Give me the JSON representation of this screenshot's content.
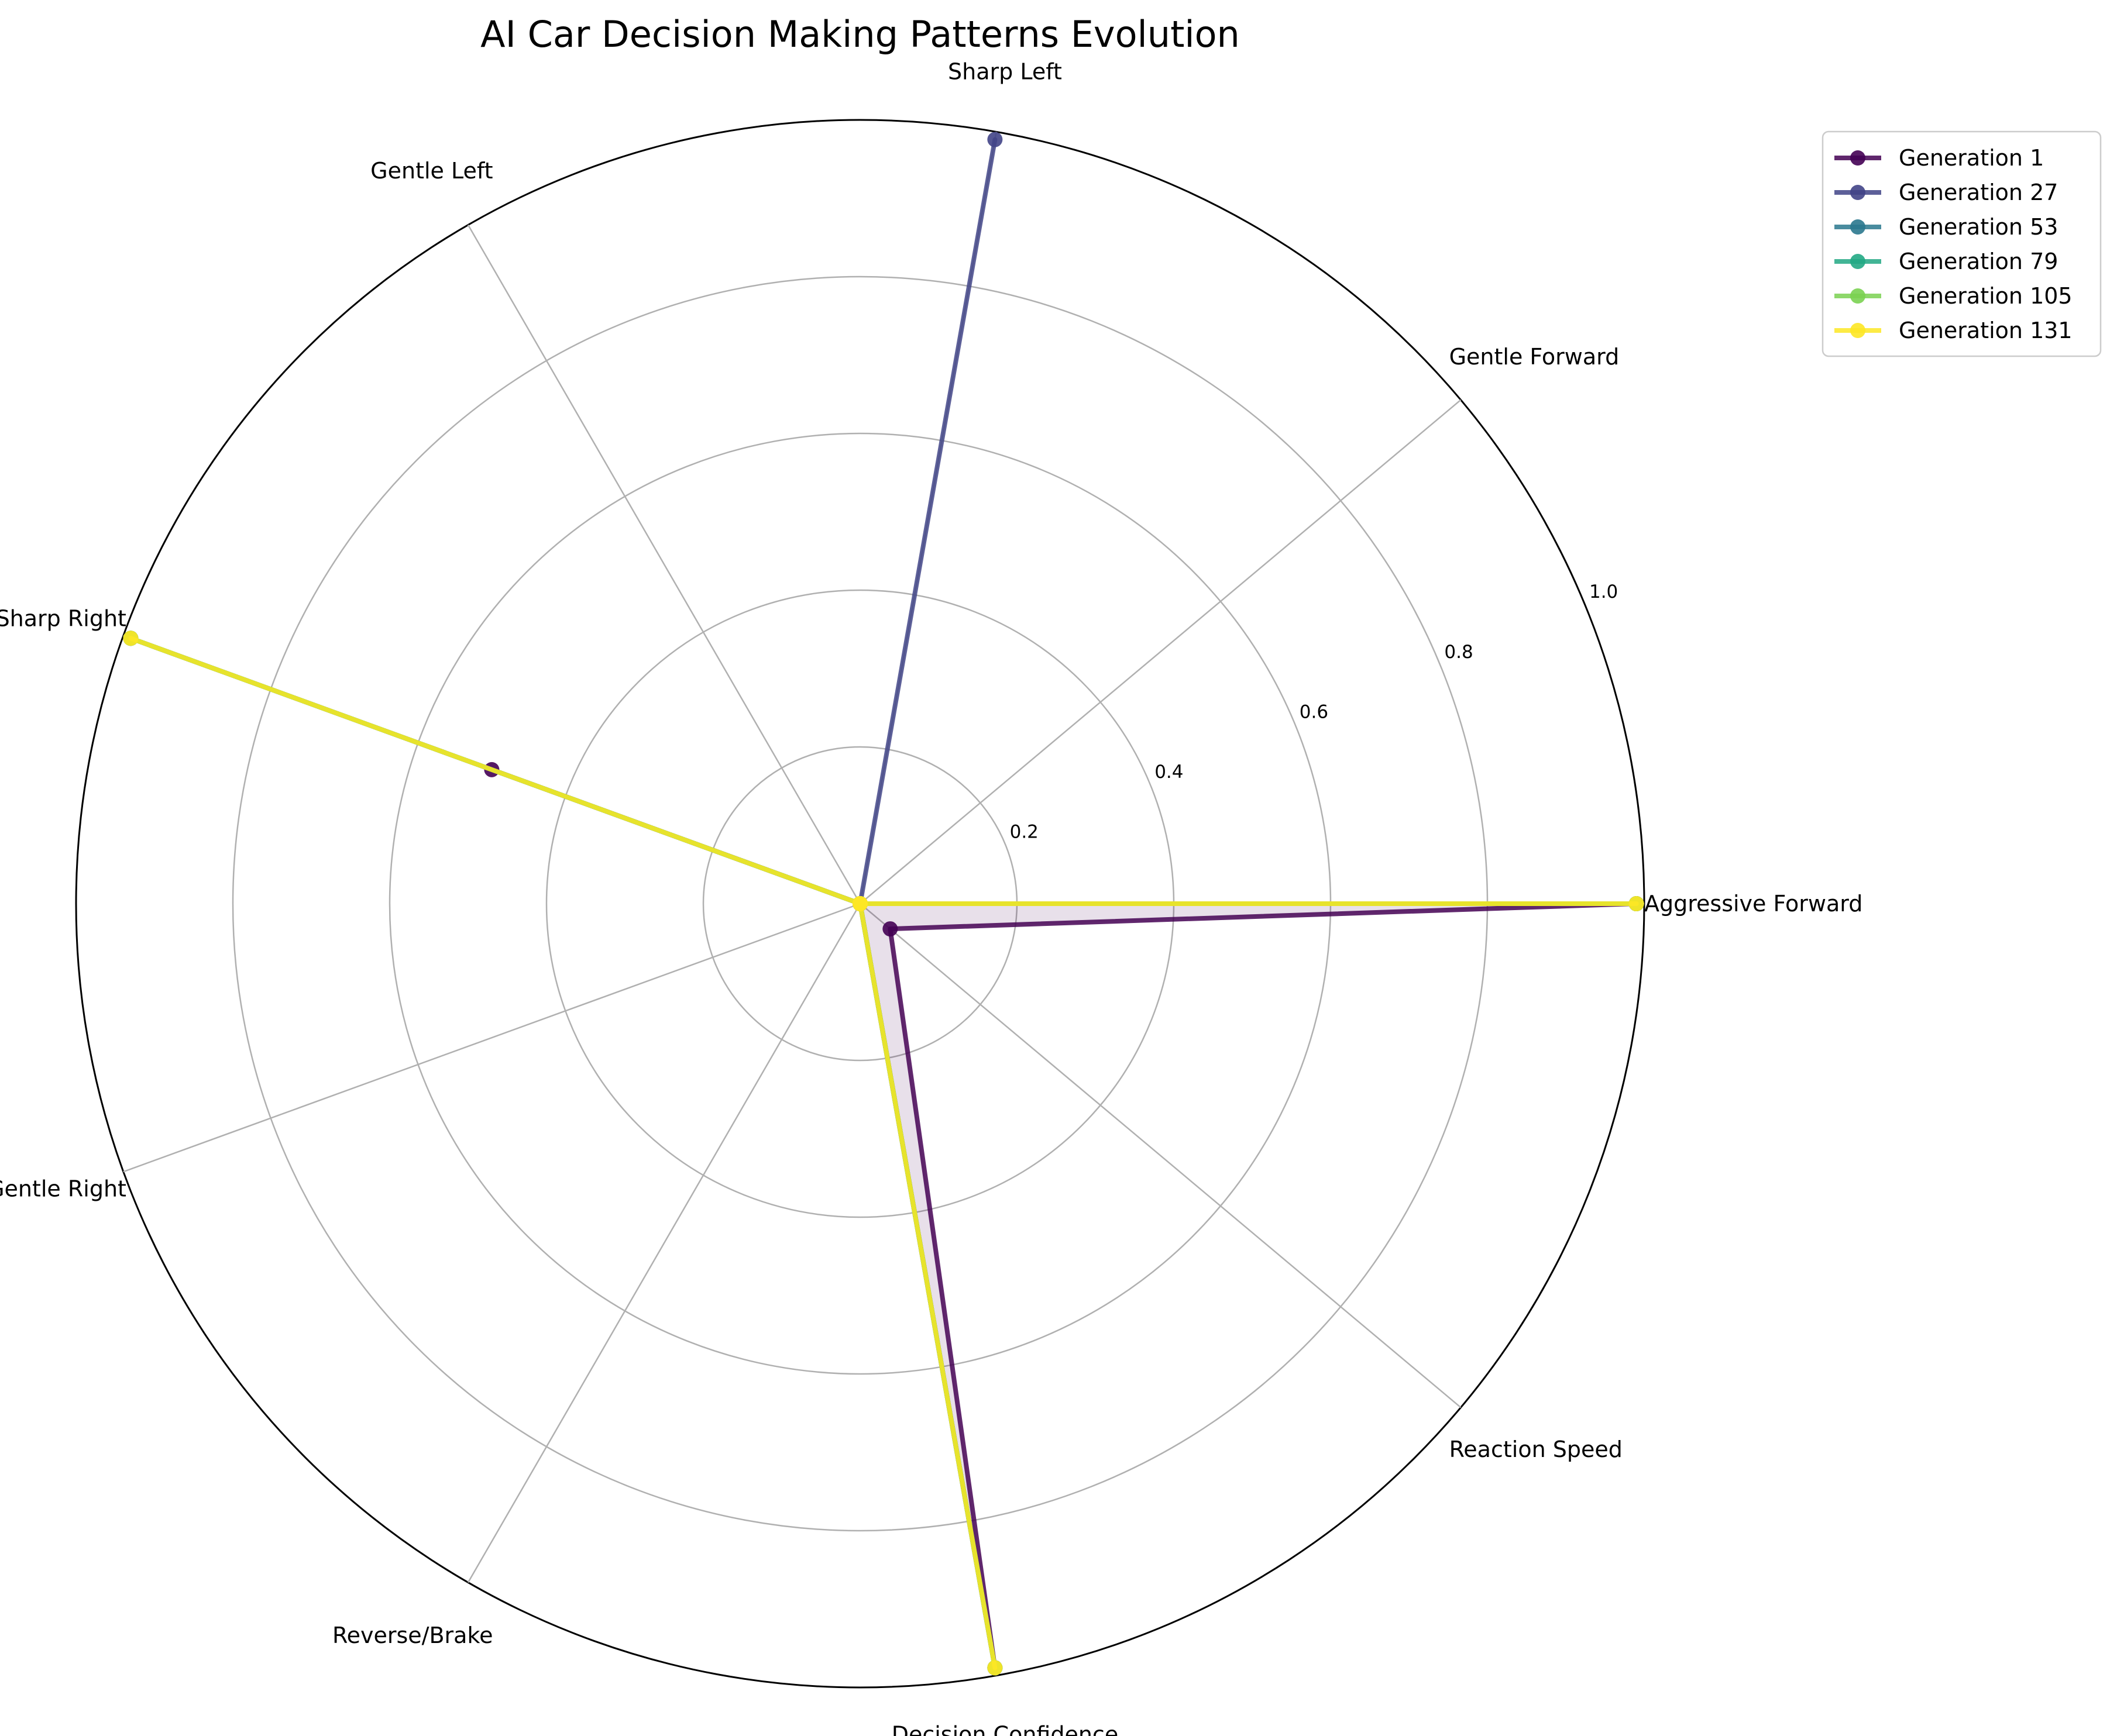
{
  "chart_data": {
    "type": "radar",
    "title": "AI Car Decision Making Patterns Evolution",
    "categories": [
      "Aggressive Forward",
      "Gentle Forward",
      "Sharp Left",
      "Gentle Left",
      "Sharp Right",
      "Gentle Right",
      "Reverse/Brake",
      "Decision Confidence",
      "Reaction Speed"
    ],
    "rlim": [
      0,
      1.0
    ],
    "rticks": [
      0.2,
      0.4,
      0.6,
      0.8,
      1.0
    ],
    "rtick_labels": [
      "0.2",
      "0.4",
      "0.6",
      "0.8",
      "1.0"
    ],
    "grid": true,
    "legend_position": "upper-right-outside",
    "series": [
      {
        "name": "Generation 1",
        "color": "#440154",
        "values": [
          0.99,
          0.0,
          0.0,
          0.0,
          0.5,
          0.0,
          0.0,
          0.99,
          0.05
        ]
      },
      {
        "name": "Generation 27",
        "color": "#414487",
        "values": [
          0.99,
          0.0,
          0.99,
          0.0,
          0.99,
          0.0,
          0.0,
          0.99,
          0.0
        ]
      },
      {
        "name": "Generation 53",
        "color": "#2a788e",
        "values": [
          0.99,
          0.0,
          0.0,
          0.0,
          0.99,
          0.0,
          0.0,
          0.99,
          0.0
        ]
      },
      {
        "name": "Generation 79",
        "color": "#22a884",
        "values": [
          0.99,
          0.0,
          0.0,
          0.0,
          0.99,
          0.0,
          0.0,
          0.99,
          0.0
        ]
      },
      {
        "name": "Generation 105",
        "color": "#7ad151",
        "values": [
          0.99,
          0.0,
          0.0,
          0.0,
          0.99,
          0.0,
          0.0,
          0.99,
          0.0
        ]
      },
      {
        "name": "Generation 131",
        "color": "#fde725",
        "values": [
          0.99,
          0.0,
          0.0,
          0.0,
          0.99,
          0.0,
          0.0,
          0.99,
          0.0
        ]
      }
    ]
  }
}
